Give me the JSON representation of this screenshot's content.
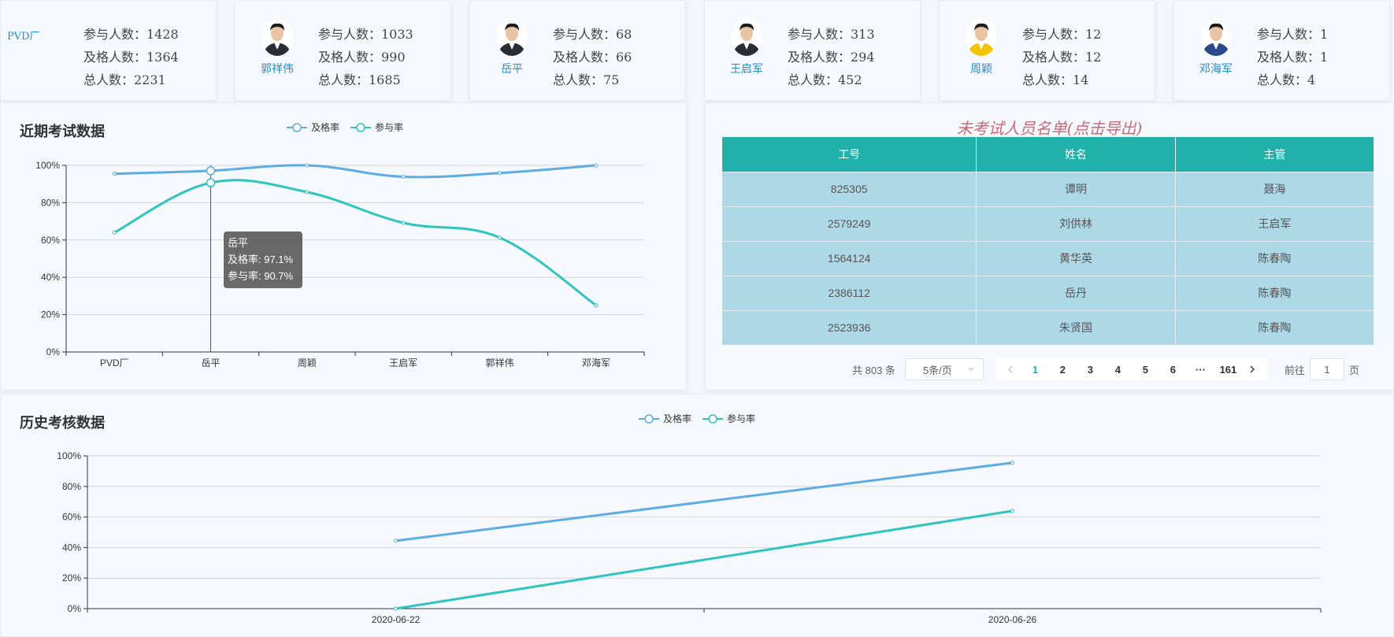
{
  "cards": [
    {
      "name": "PVD厂",
      "participants": "参与人数：1428",
      "passed": "及格人数：1364",
      "total": "总人数：2231",
      "avatar": "none"
    },
    {
      "name": "郭祥伟",
      "participants": "参与人数：1033",
      "passed": "及格人数：990",
      "total": "总人数：1685",
      "avatar": "man-dark-suit"
    },
    {
      "name": "岳平",
      "participants": "参与人数：68",
      "passed": "及格人数：66",
      "total": "总人数：75",
      "avatar": "man-dark-suit"
    },
    {
      "name": "王启军",
      "participants": "参与人数：313",
      "passed": "及格人数：294",
      "total": "总人数：452",
      "avatar": "man-dark-suit"
    },
    {
      "name": "周颖",
      "participants": "参与人数：12",
      "passed": "及格人数：12",
      "total": "总人数：14",
      "avatar": "woman-yellow-shirt"
    },
    {
      "name": "邓海军",
      "participants": "参与人数：1",
      "passed": "及格人数：1",
      "total": "总人数：4",
      "avatar": "man-blue-shirt"
    }
  ],
  "recent": {
    "title": "近期考试数据",
    "legend": [
      "及格率",
      "参与率"
    ],
    "tooltip": {
      "title": "岳平",
      "pass": "及格率: 97.1%",
      "attend": "参与率: 90.7%"
    }
  },
  "history": {
    "title": "历史考核数据",
    "legend": [
      "及格率",
      "参与率"
    ]
  },
  "export_title": "未考试人员名单(点击导出)",
  "table": {
    "headers": [
      "工号",
      "姓名",
      "主管"
    ],
    "rows": [
      [
        "825305",
        "谭明",
        "聂海"
      ],
      [
        "2579249",
        "刘供林",
        "王启军"
      ],
      [
        "1564124",
        "黄华英",
        "陈春陶"
      ],
      [
        "2386112",
        "岳丹",
        "陈春陶"
      ],
      [
        "2523936",
        "朱贤国",
        "陈春陶"
      ]
    ]
  },
  "pagination": {
    "total": "共 803 条",
    "page_size": "5条/页",
    "pages": [
      "1",
      "2",
      "3",
      "4",
      "5",
      "6",
      "···",
      "161"
    ],
    "active": "1",
    "goto_label": "前往",
    "goto_value": "1",
    "page_suffix": "页"
  },
  "colors": {
    "pass": "#5dade2",
    "attend": "#2ec4c0",
    "header": "#20b2aa",
    "row": "#add8e6"
  },
  "chart_data": [
    {
      "type": "line",
      "title": "近期考试数据",
      "categories": [
        "PVD厂",
        "岳平",
        "周颖",
        "王启军",
        "郭祥伟",
        "邓海军"
      ],
      "series": [
        {
          "name": "及格率",
          "values": [
            95.5,
            97.1,
            100,
            93.9,
            95.9,
            100
          ]
        },
        {
          "name": "参与率",
          "values": [
            64,
            90.7,
            85.7,
            69.2,
            61.3,
            25
          ]
        }
      ],
      "ylim": [
        0,
        100
      ],
      "yticks": [
        "0%",
        "20%",
        "40%",
        "60%",
        "80%",
        "100%"
      ],
      "smooth": true,
      "grid": true,
      "legend": "top-center"
    },
    {
      "type": "line",
      "title": "历史考核数据",
      "categories": [
        "2020-06-22",
        "2020-06-26"
      ],
      "series": [
        {
          "name": "及格率",
          "values": [
            44.4,
            95.5
          ]
        },
        {
          "name": "参与率",
          "values": [
            0,
            64
          ]
        }
      ],
      "ylim": [
        0,
        100
      ],
      "yticks": [
        "0%",
        "20%",
        "40%",
        "60%",
        "80%",
        "100%"
      ],
      "grid": true,
      "legend": "top-center"
    }
  ]
}
